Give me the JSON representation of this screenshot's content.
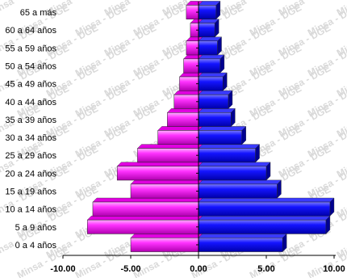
{
  "chart_data": {
    "type": "bar",
    "orientation": "horizontal",
    "stacked_population_pyramid": true,
    "categories": [
      "0 a 4 años",
      "5 a 9 años",
      "10 a 14 años",
      "15 a 19 años",
      "20 a 24 años",
      "25 a 29 años",
      "30 a 34 años",
      "35 a 39 años",
      "40 a 44 años",
      "45 a 49 años",
      "50 a 54 años",
      "55 a 59 años",
      "60 a 64 años",
      "65 a más"
    ],
    "series": [
      {
        "color": "#ff00ff",
        "values": [
          -5.0,
          -8.2,
          -7.8,
          -5.0,
          -6.0,
          -4.5,
          -3.0,
          -2.3,
          -1.8,
          -1.4,
          -1.1,
          -0.9,
          -0.6,
          -0.9
        ]
      },
      {
        "color": "#0000ff",
        "values": [
          6.2,
          9.4,
          9.7,
          5.8,
          5.0,
          4.2,
          3.2,
          2.4,
          2.2,
          1.8,
          1.6,
          1.4,
          1.2,
          1.3
        ]
      }
    ],
    "xlim": [
      -10,
      10
    ],
    "xticks": [
      "-10.00",
      "-5.00",
      "0.00",
      "5.00",
      "10.00"
    ],
    "grid": false,
    "watermark": "Minsa - DGE"
  }
}
